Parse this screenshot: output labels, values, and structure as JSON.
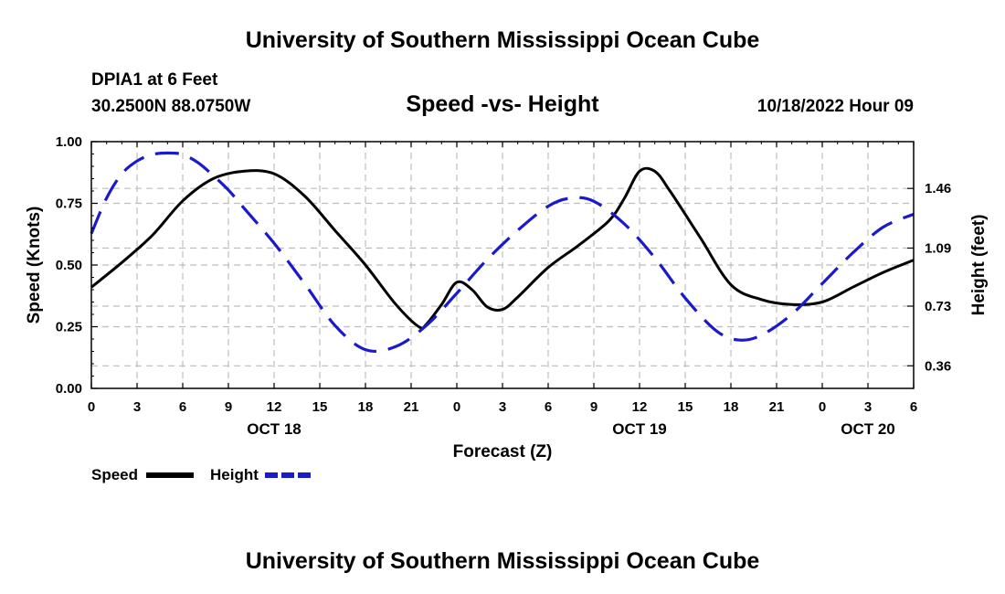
{
  "header": {
    "title": "University of Southern Mississippi Ocean Cube",
    "station": "DPIA1 at 6 Feet",
    "coords": "30.2500N  88.0750W",
    "subtitle": "Speed -vs- Height",
    "timestamp": "10/18/2022 Hour 09"
  },
  "footer": {
    "title": "University of Southern Mississippi Ocean Cube"
  },
  "chart_data": {
    "type": "line",
    "xlabel": "Forecast (Z)",
    "ylabel": "Speed (Knots)",
    "y2label": "Height (feet)",
    "xlim": [
      0,
      54
    ],
    "ylim": [
      0,
      1
    ],
    "y2lim": [
      0.22,
      1.75
    ],
    "x_ticks": [
      0,
      3,
      6,
      9,
      12,
      15,
      18,
      21,
      24,
      27,
      30,
      33,
      36,
      39,
      42,
      45,
      48,
      51,
      54
    ],
    "x_tick_labels": [
      "0",
      "3",
      "6",
      "9",
      "12",
      "15",
      "18",
      "21",
      "0",
      "3",
      "6",
      "9",
      "12",
      "15",
      "18",
      "21",
      "0",
      "3",
      "6"
    ],
    "y_ticks": [
      0,
      0.25,
      0.5,
      0.75,
      1.0
    ],
    "y_tick_labels": [
      "0.00",
      "0.25",
      "0.50",
      "0.75",
      "1.00"
    ],
    "y2_ticks": [
      0.36,
      0.73,
      1.09,
      1.46
    ],
    "y2_tick_labels": [
      "0.36",
      "0.73",
      "1.09",
      "1.46"
    ],
    "date_labels": [
      {
        "text": "OCT 18",
        "x": 12
      },
      {
        "text": "OCT 19",
        "x": 36
      },
      {
        "text": "OCT 20",
        "x": 51
      }
    ],
    "grid": true,
    "legend": "bottom-left",
    "series": [
      {
        "name": "Speed",
        "axis": "left",
        "color": "#000000",
        "style": "solid",
        "x": [
          0,
          2,
          4,
          6,
          8,
          10,
          12,
          14,
          16,
          18,
          20,
          21.5,
          22,
          23,
          24,
          25,
          26,
          27,
          28,
          30,
          32,
          34,
          35,
          36,
          37,
          38,
          40,
          42,
          44,
          46,
          48,
          50,
          52,
          54
        ],
        "values": [
          0.41,
          0.51,
          0.62,
          0.76,
          0.85,
          0.88,
          0.87,
          0.78,
          0.64,
          0.5,
          0.34,
          0.25,
          0.26,
          0.34,
          0.43,
          0.4,
          0.33,
          0.32,
          0.37,
          0.49,
          0.58,
          0.68,
          0.77,
          0.88,
          0.88,
          0.8,
          0.61,
          0.42,
          0.36,
          0.34,
          0.35,
          0.41,
          0.47,
          0.52
        ]
      },
      {
        "name": "Height",
        "axis": "right",
        "color": "#1a1acc",
        "style": "dashed",
        "x": [
          0,
          1,
          2,
          3,
          4,
          5,
          6,
          7,
          8,
          9,
          10,
          12,
          14,
          16,
          18,
          20,
          22,
          24,
          26,
          28,
          30,
          31.5,
          33,
          35,
          37,
          39,
          41,
          42.5,
          44,
          46,
          48,
          50,
          52,
          54
        ],
        "values": [
          1.18,
          1.4,
          1.55,
          1.63,
          1.67,
          1.68,
          1.67,
          1.62,
          1.54,
          1.45,
          1.34,
          1.12,
          0.87,
          0.61,
          0.46,
          0.48,
          0.61,
          0.81,
          1.02,
          1.2,
          1.35,
          1.4,
          1.38,
          1.24,
          1.03,
          0.78,
          0.58,
          0.52,
          0.55,
          0.68,
          0.87,
          1.06,
          1.22,
          1.3
        ]
      }
    ]
  }
}
